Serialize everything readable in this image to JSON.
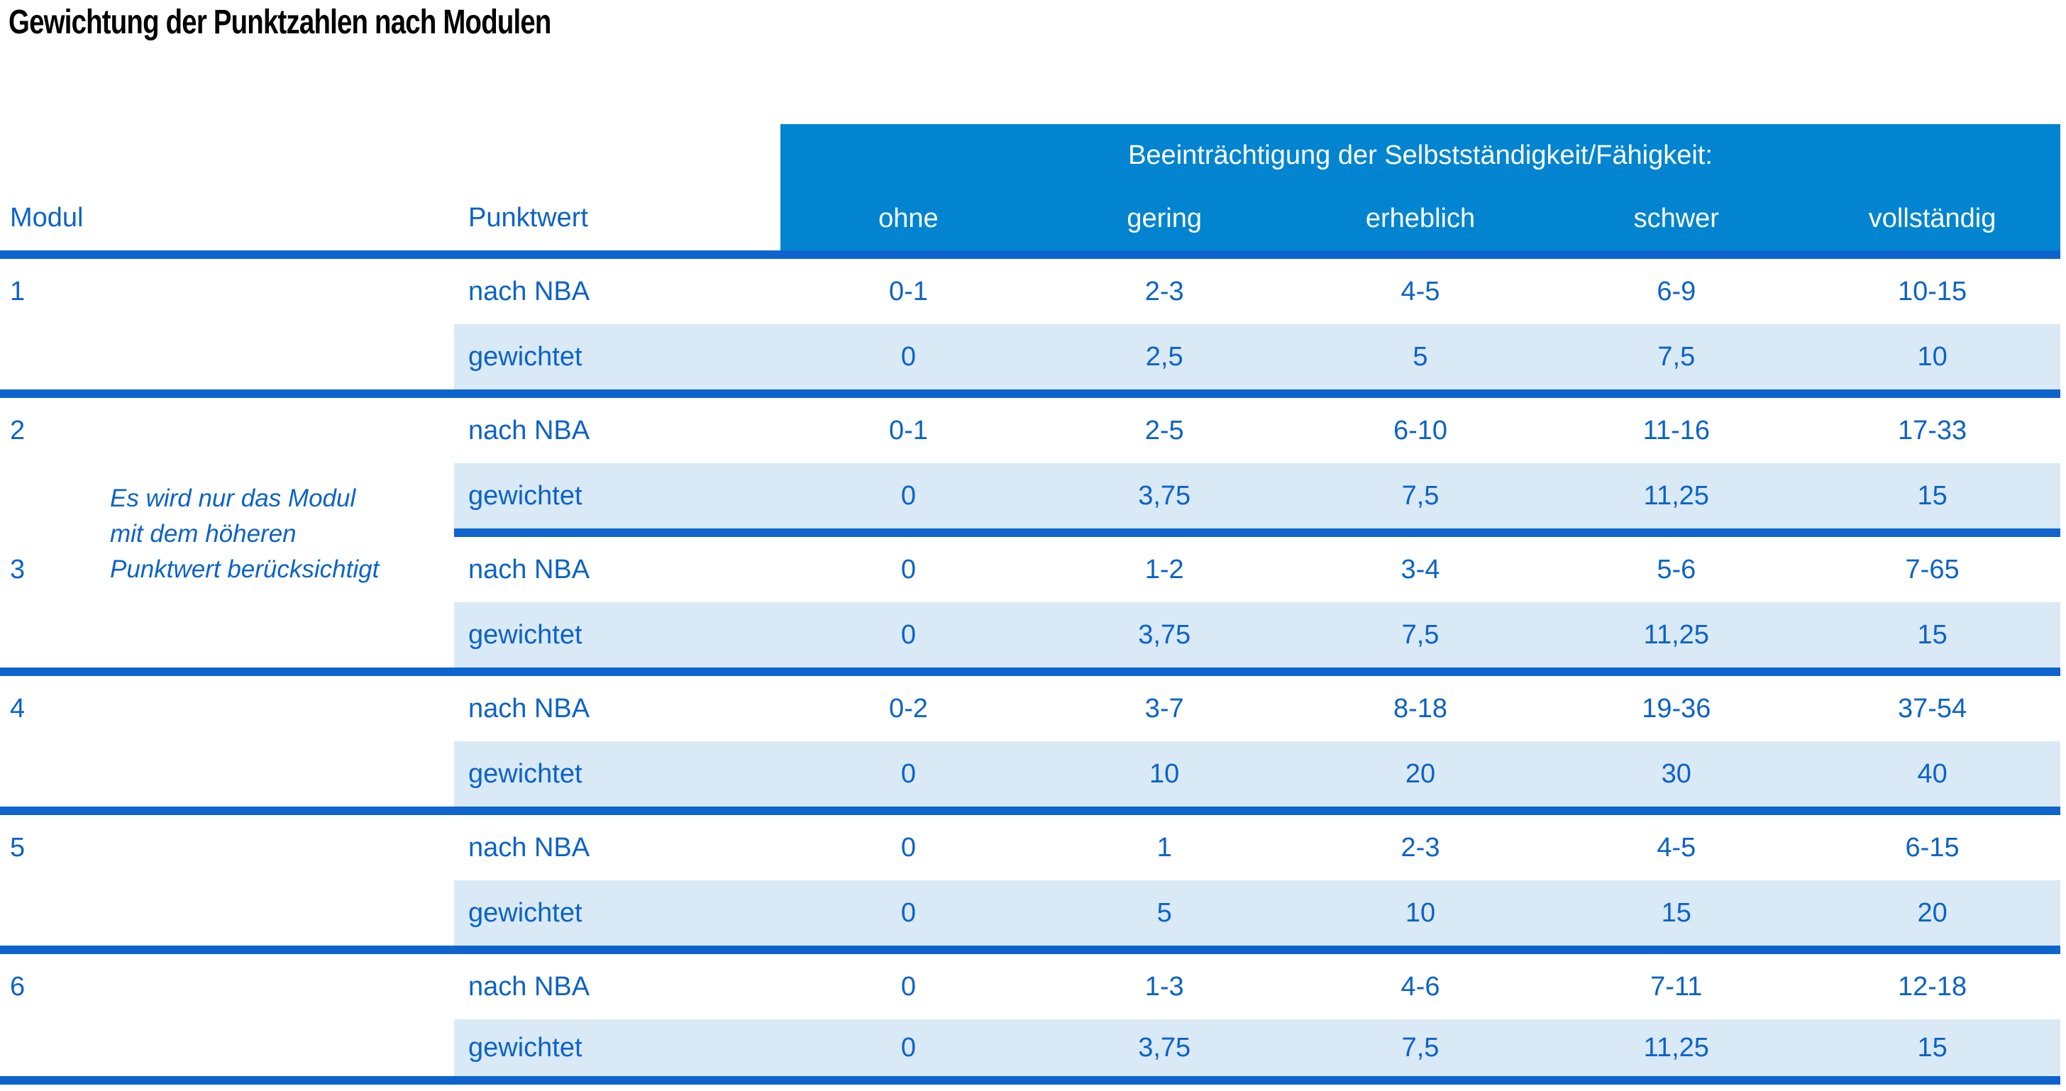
{
  "title": "Gewichtung der Punktzahlen nach Modulen",
  "colors": {
    "header_blue": "#0284D0",
    "weighted_row_blue": "#D9E9F6",
    "divider_blue": "#0D64CE",
    "text_blue": "#0C63C6",
    "title_black": "#000000"
  },
  "table": {
    "group_header": "Beeinträchtigung der Selbstständigkeit/Fähigkeit:",
    "col_modul": "Modul",
    "col_punktwert": "Punktwert",
    "severity_columns": [
      "ohne",
      "gering",
      "erheblich",
      "schwer",
      "vollständig"
    ],
    "row_labels": {
      "nba": "nach NBA",
      "weighted": "gewichtet"
    },
    "note": {
      "line1": "Es wird nur das Modul",
      "line2": "mit dem höheren",
      "line3": "Punktwert berücksichtigt"
    },
    "modules": [
      {
        "id": "1",
        "nba": [
          "0-1",
          "2-3",
          "4-5",
          "6-9",
          "10-15"
        ],
        "weighted": [
          "0",
          "2,5",
          "5",
          "7,5",
          "10"
        ]
      },
      {
        "id": "2",
        "nba": [
          "0-1",
          "2-5",
          "6-10",
          "11-16",
          "17-33"
        ],
        "weighted": [
          "0",
          "3,75",
          "7,5",
          "11,25",
          "15"
        ]
      },
      {
        "id": "3",
        "nba": [
          "0",
          "1-2",
          "3-4",
          "5-6",
          "7-65"
        ],
        "weighted": [
          "0",
          "3,75",
          "7,5",
          "11,25",
          "15"
        ]
      },
      {
        "id": "4",
        "nba": [
          "0-2",
          "3-7",
          "8-18",
          "19-36",
          "37-54"
        ],
        "weighted": [
          "0",
          "10",
          "20",
          "30",
          "40"
        ]
      },
      {
        "id": "5",
        "nba": [
          "0",
          "1",
          "2-3",
          "4-5",
          "6-15"
        ],
        "weighted": [
          "0",
          "5",
          "10",
          "15",
          "20"
        ]
      },
      {
        "id": "6",
        "nba": [
          "0",
          "1-3",
          "4-6",
          "7-11",
          "12-18"
        ],
        "weighted": [
          "0",
          "3,75",
          "7,5",
          "11,25",
          "15"
        ]
      }
    ]
  }
}
